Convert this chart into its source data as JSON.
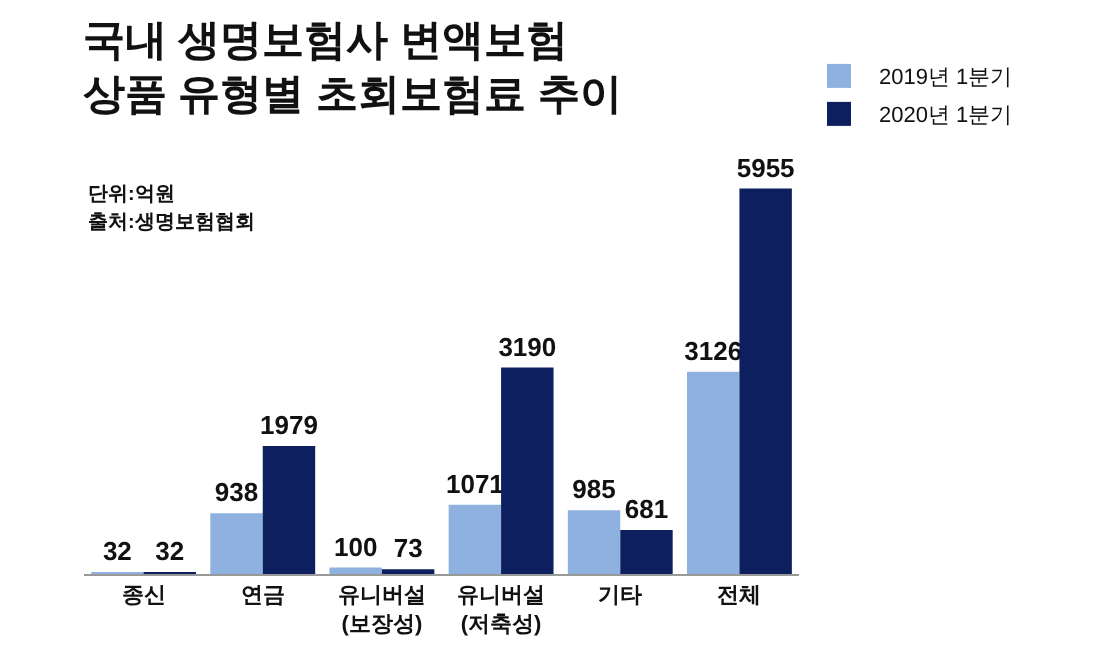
{
  "chart_data": {
    "type": "bar",
    "title": "국내 생명보험사 변액보험\n상품 유형별 초회보험료 추이",
    "annotations": [
      "단위:억원",
      "출처:생명보험협회"
    ],
    "categories": [
      "종신",
      "연금",
      "유니버설\n(보장성)",
      "유니버설\n(저축성)",
      "기타",
      "전체"
    ],
    "series": [
      {
        "name": "2019년 1분기",
        "color": "#8eb1e0",
        "values": [
          32,
          938,
          100,
          1071,
          985,
          3126
        ]
      },
      {
        "name": "2020년 1분기",
        "color": "#0d1f5e",
        "values": [
          32,
          1979,
          73,
          3190,
          681,
          5955
        ]
      }
    ],
    "data_labels": true,
    "legend": "top right",
    "grid": false
  }
}
